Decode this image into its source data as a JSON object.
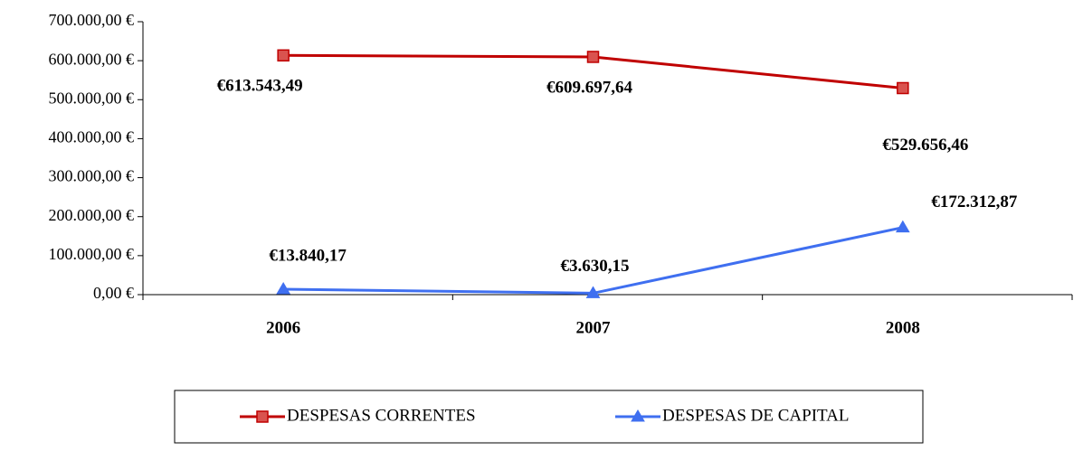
{
  "chart_data": {
    "type": "line",
    "categories": [
      "2006",
      "2007",
      "2008"
    ],
    "series": [
      {
        "name": "DESPESAS CORRENTES",
        "color": "#c00000",
        "marker": "square",
        "values": [
          613543.49,
          609697.64,
          529656.46
        ],
        "value_labels": [
          "€613.543,49",
          "€609.697,64",
          "€529.656,46"
        ]
      },
      {
        "name": "DESPESAS DE CAPITAL",
        "color": "#3f6ff0",
        "marker": "triangle",
        "values": [
          13840.17,
          3630.15,
          172312.87
        ],
        "value_labels": [
          "€13.840,17",
          "€3.630,15",
          "€172.312,87"
        ]
      }
    ],
    "ylim": [
      0,
      700000
    ],
    "yticks": [
      {
        "value": 0,
        "label": "0,00 €"
      },
      {
        "value": 100000,
        "label": "100.000,00 €"
      },
      {
        "value": 200000,
        "label": "200.000,00 €"
      },
      {
        "value": 300000,
        "label": "300.000,00 €"
      },
      {
        "value": 400000,
        "label": "400.000,00 €"
      },
      {
        "value": 500000,
        "label": "500.000,00 €"
      },
      {
        "value": 600000,
        "label": "600.000,00 €"
      },
      {
        "value": 700000,
        "label": "700.000,00 €"
      }
    ],
    "legend": "bottom"
  }
}
